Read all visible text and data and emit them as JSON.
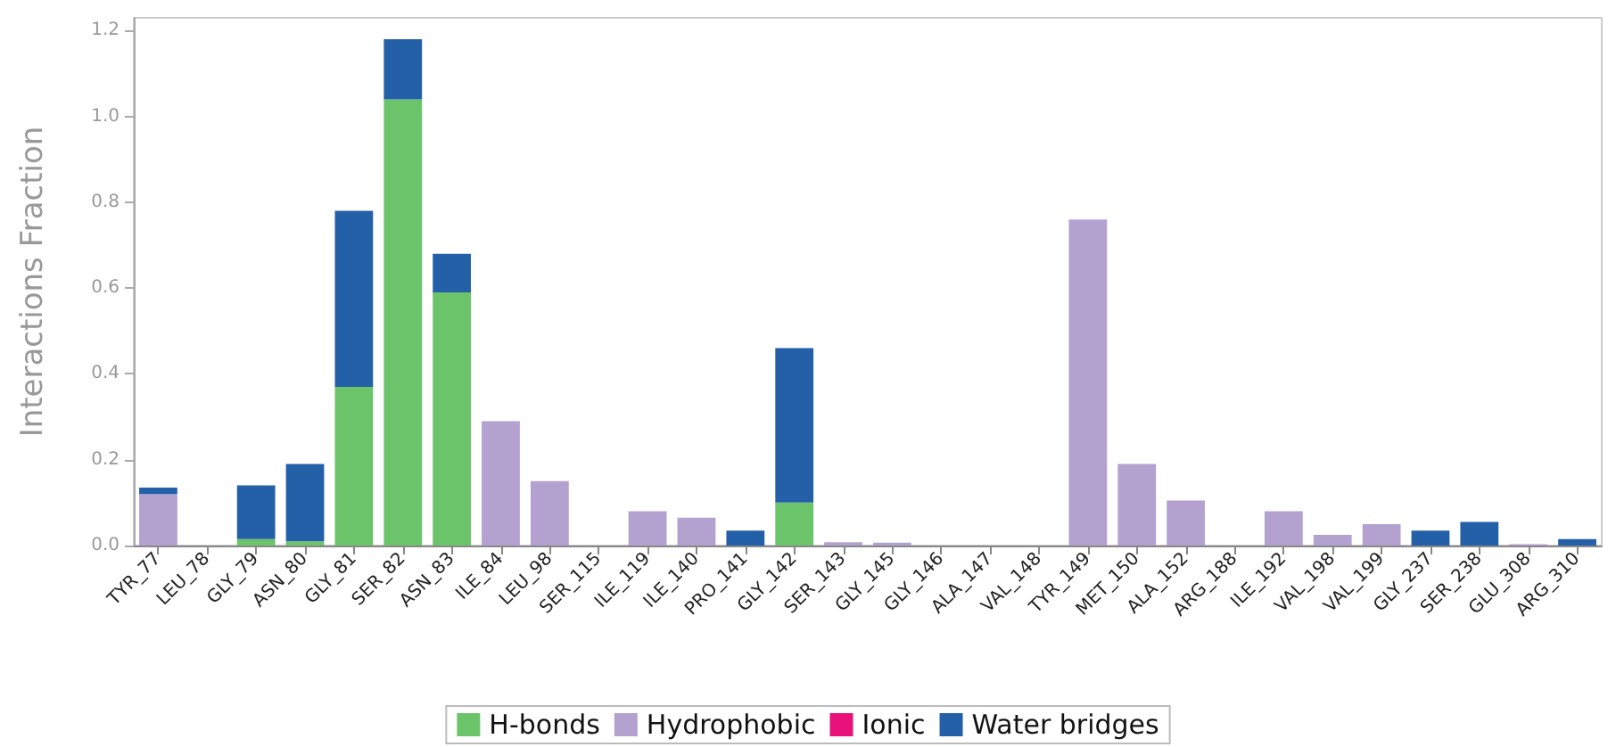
{
  "chart_data": {
    "type": "bar",
    "stacked": true,
    "ylabel": "Interactions Fraction",
    "categories": [
      "TYR_77",
      "LEU_78",
      "GLY_79",
      "ASN_80",
      "GLY_81",
      "SER_82",
      "ASN_83",
      "ILE_84",
      "LEU_98",
      "SER_115",
      "ILE_119",
      "ILE_140",
      "PRO_141",
      "GLY_142",
      "SER_143",
      "GLY_145",
      "GLY_146",
      "ALA_147",
      "VAL_148",
      "TYR_149",
      "MET_150",
      "ALA_152",
      "ARG_188",
      "ILE_192",
      "VAL_198",
      "VAL_199",
      "GLY_237",
      "SER_238",
      "GLU_308",
      "ARG_310"
    ],
    "series": [
      {
        "name": "H-bonds",
        "color": "#6cc46a",
        "values": [
          0,
          0,
          0.015,
          0.01,
          0.37,
          1.04,
          0.59,
          0,
          0,
          0,
          0,
          0,
          0,
          0.1,
          0,
          0,
          0,
          0,
          0,
          0,
          0,
          0,
          0,
          0,
          0,
          0,
          0,
          0,
          0,
          0
        ]
      },
      {
        "name": "Hydrophobic",
        "color": "#b3a2d0",
        "values": [
          0.12,
          0,
          0,
          0,
          0,
          0,
          0,
          0.29,
          0.15,
          0,
          0.08,
          0.065,
          0,
          0,
          0.008,
          0.007,
          0,
          0,
          0,
          0.76,
          0.19,
          0.105,
          0,
          0.08,
          0.025,
          0.05,
          0,
          0,
          0.003,
          0
        ]
      },
      {
        "name": "Ionic",
        "color": "#e8127a",
        "values": [
          0,
          0,
          0,
          0,
          0,
          0,
          0,
          0,
          0,
          0,
          0,
          0,
          0,
          0,
          0,
          0,
          0,
          0,
          0,
          0,
          0,
          0,
          0,
          0,
          0,
          0,
          0,
          0,
          0,
          0
        ]
      },
      {
        "name": "Water bridges",
        "color": "#2460a8",
        "values": [
          0.015,
          0,
          0.125,
          0.18,
          0.41,
          0.14,
          0.09,
          0,
          0,
          0,
          0,
          0,
          0.035,
          0.36,
          0,
          0,
          0,
          0,
          0,
          0,
          0,
          0,
          0,
          0,
          0,
          0,
          0.035,
          0.055,
          0,
          0.015
        ]
      }
    ],
    "ylim": [
      0,
      1.23
    ],
    "yticks": [
      {
        "value": 0,
        "label": "0.0"
      },
      {
        "value": 0.2,
        "label": "0.2"
      },
      {
        "value": 0.4,
        "label": "0.4"
      },
      {
        "value": 0.6,
        "label": "0.6"
      },
      {
        "value": 0.8,
        "label": "0.8"
      },
      {
        "value": 1,
        "label": "1.0"
      },
      {
        "value": 1.2,
        "label": "1.2"
      }
    ],
    "grid": false,
    "legend": "bottom"
  }
}
